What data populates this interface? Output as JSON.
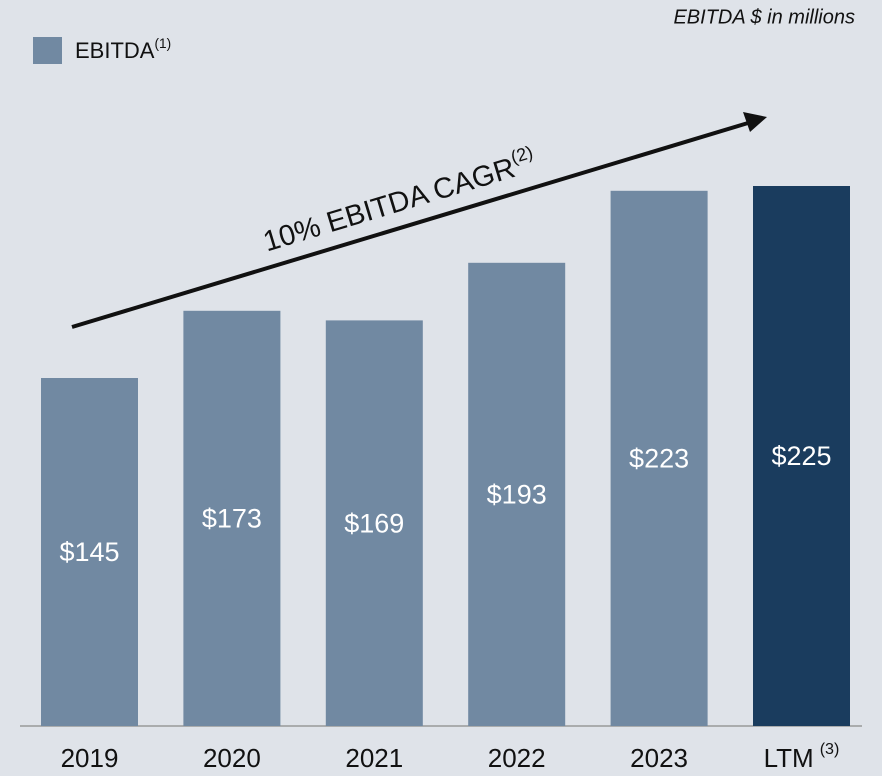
{
  "chart_data": {
    "type": "bar",
    "subtitle": "EBITDA $ in millions",
    "categories": [
      "2019",
      "2020",
      "2021",
      "2022",
      "2023",
      "LTM"
    ],
    "category_footnotes": [
      null,
      null,
      null,
      null,
      null,
      "(3)"
    ],
    "series": [
      {
        "name": "EBITDA",
        "footnote": "(1)",
        "color": "#7189a2",
        "values": [
          145,
          173,
          169,
          193,
          223,
          225
        ],
        "value_labels": [
          "$145",
          "$173",
          "$169",
          "$193",
          "$223",
          "$225"
        ]
      }
    ],
    "bar_colors": [
      "#7189a2",
      "#7189a2",
      "#7189a2",
      "#7189a2",
      "#7189a2",
      "#1a3c5e"
    ],
    "annotation": {
      "text": "10% EBITDA CAGR",
      "footnote": "(2)"
    },
    "ylim": [
      0,
      302.5
    ]
  }
}
